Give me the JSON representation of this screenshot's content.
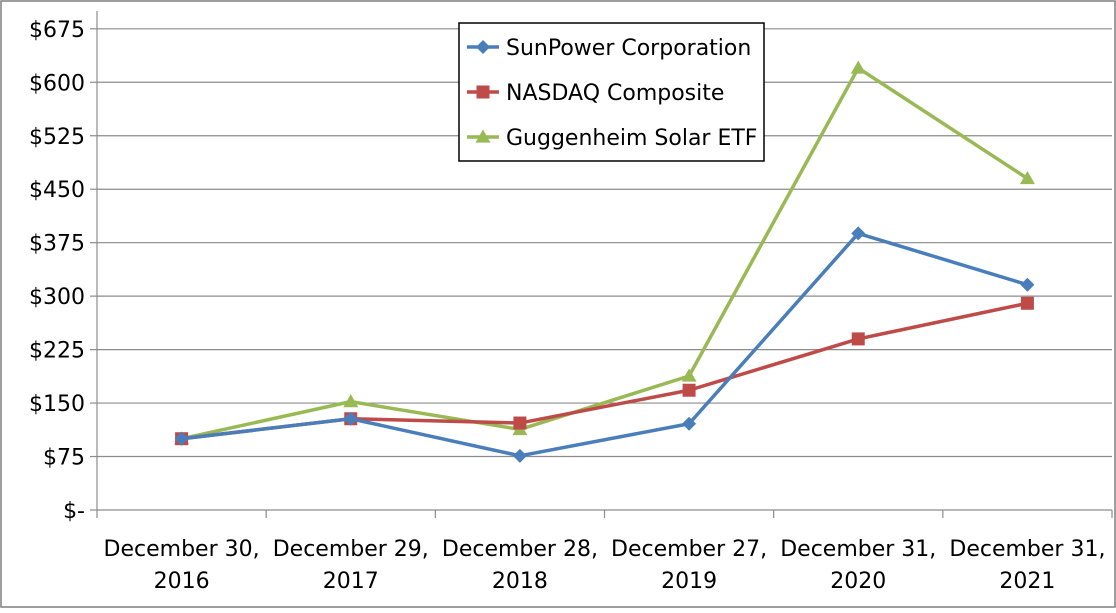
{
  "chart_data": {
    "type": "line",
    "title": "",
    "xlabel": "",
    "ylabel": "",
    "categories": [
      [
        "December 30,",
        "2016"
      ],
      [
        "December 29,",
        "2017"
      ],
      [
        "December 28,",
        "2018"
      ],
      [
        "December 27,",
        "2019"
      ],
      [
        "December 31,",
        "2020"
      ],
      [
        "December 31,",
        "2021"
      ]
    ],
    "ylim": [
      0,
      700
    ],
    "yticks": [
      0,
      75,
      150,
      225,
      300,
      375,
      450,
      525,
      600,
      675
    ],
    "ytick_labels": [
      "$-",
      "$75",
      "$150",
      "$225",
      "$300",
      "$375",
      "$450",
      "$525",
      "$600",
      "$675"
    ],
    "grid": true,
    "legend_position": "top-center",
    "series": [
      {
        "name": "SunPower Corporation",
        "color": "#4a7ebb",
        "marker": "diamond",
        "values": [
          100,
          128,
          76,
          121,
          388,
          316
        ]
      },
      {
        "name": "NASDAQ Composite",
        "color": "#be4b48",
        "marker": "square",
        "values": [
          100,
          128,
          122,
          168,
          240,
          290
        ]
      },
      {
        "name": "Guggenheim Solar ETF",
        "color": "#98b954",
        "marker": "triangle",
        "values": [
          100,
          152,
          113,
          188,
          620,
          465
        ]
      }
    ]
  }
}
